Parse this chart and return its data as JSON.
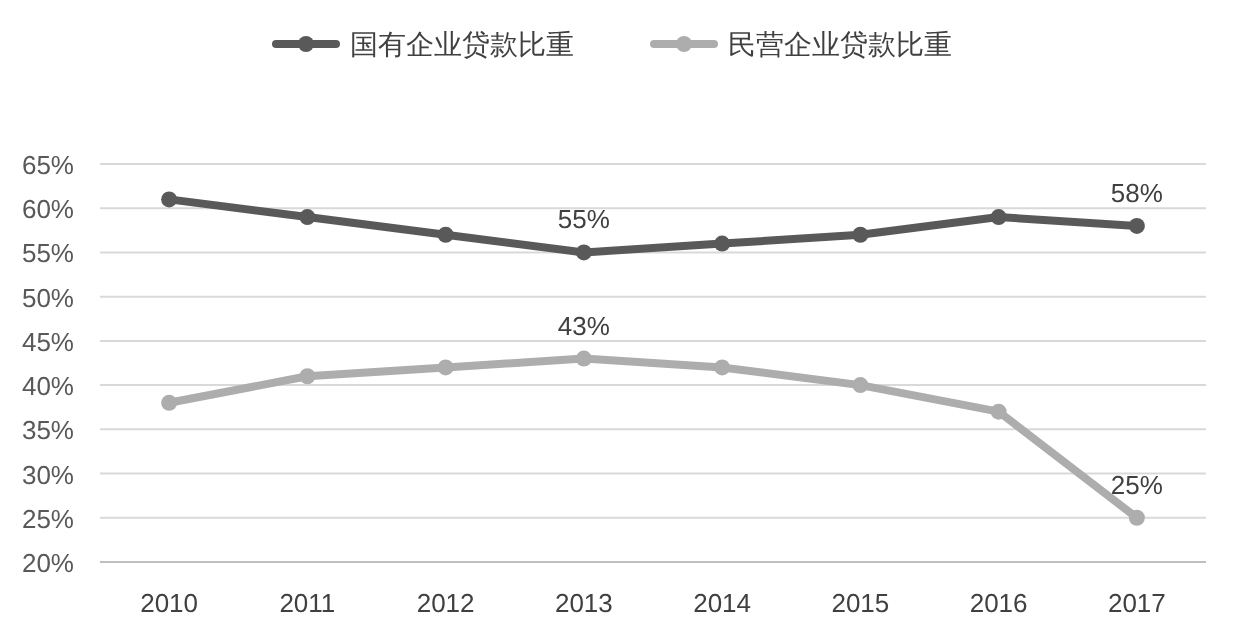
{
  "chart_data": {
    "type": "line",
    "categories": [
      "2010",
      "2011",
      "2012",
      "2013",
      "2014",
      "2015",
      "2016",
      "2017"
    ],
    "series": [
      {
        "name": "国有企业贷款比重",
        "color": "#595959",
        "values": [
          61,
          59,
          57,
          55,
          56,
          57,
          59,
          58
        ],
        "value_labels": [
          null,
          null,
          null,
          "55%",
          null,
          null,
          null,
          "58%"
        ]
      },
      {
        "name": "民营企业贷款比重",
        "color": "#adadad",
        "values": [
          38,
          41,
          42,
          43,
          42,
          40,
          37,
          25
        ],
        "value_labels": [
          null,
          null,
          null,
          "43%",
          null,
          null,
          null,
          "25%"
        ]
      }
    ],
    "ylim": [
      20,
      65
    ],
    "yticks": [
      {
        "value": 20,
        "label": "20%"
      },
      {
        "value": 25,
        "label": "25%"
      },
      {
        "value": 30,
        "label": "30%"
      },
      {
        "value": 35,
        "label": "35%"
      },
      {
        "value": 40,
        "label": "40%"
      },
      {
        "value": 45,
        "label": "45%"
      },
      {
        "value": 50,
        "label": "50%"
      },
      {
        "value": 55,
        "label": "55%"
      },
      {
        "value": 60,
        "label": "60%"
      },
      {
        "value": 65,
        "label": "65%"
      }
    ],
    "grid": "y",
    "legend": "top",
    "marker": "circle",
    "line_style": "solid"
  }
}
